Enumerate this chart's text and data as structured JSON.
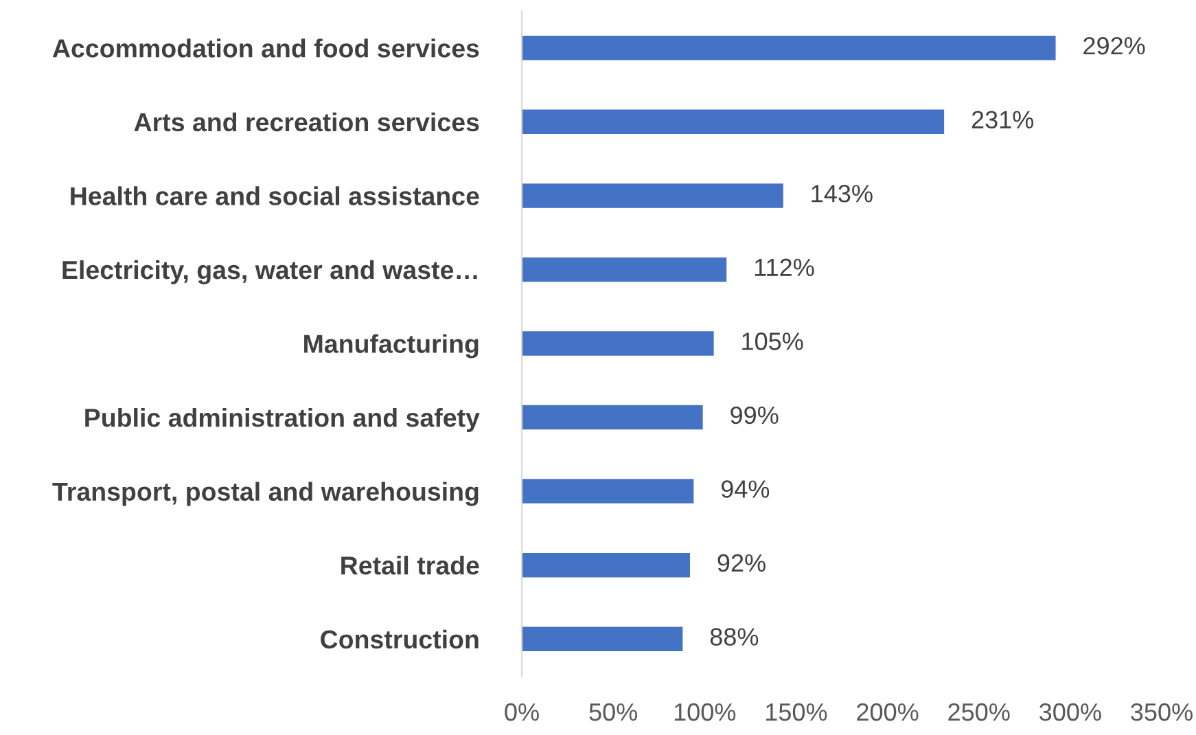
{
  "chart_data": {
    "type": "bar",
    "orientation": "horizontal",
    "categories": [
      "Accommodation and food services",
      "Arts and recreation services",
      "Health care and social assistance",
      "Electricity, gas, water and waste…",
      "Manufacturing",
      "Public administration and safety",
      "Transport, postal and warehousing",
      "Retail trade",
      "Construction"
    ],
    "values": [
      292,
      231,
      143,
      112,
      105,
      99,
      94,
      92,
      88
    ],
    "value_labels": [
      "292%",
      "231%",
      "143%",
      "112%",
      "105%",
      "99%",
      "94%",
      "92%",
      "88%"
    ],
    "color": "#4472c4",
    "xlim": [
      0,
      350
    ],
    "xticks": [
      {
        "value": 0,
        "label": "0%"
      },
      {
        "value": 50,
        "label": "50%"
      },
      {
        "value": 100,
        "label": "100%"
      },
      {
        "value": 150,
        "label": "150%"
      },
      {
        "value": 200,
        "label": "200%"
      },
      {
        "value": 250,
        "label": "250%"
      },
      {
        "value": 300,
        "label": "300%"
      },
      {
        "value": 350,
        "label": "350%"
      }
    ],
    "grid": false,
    "legend": false
  }
}
